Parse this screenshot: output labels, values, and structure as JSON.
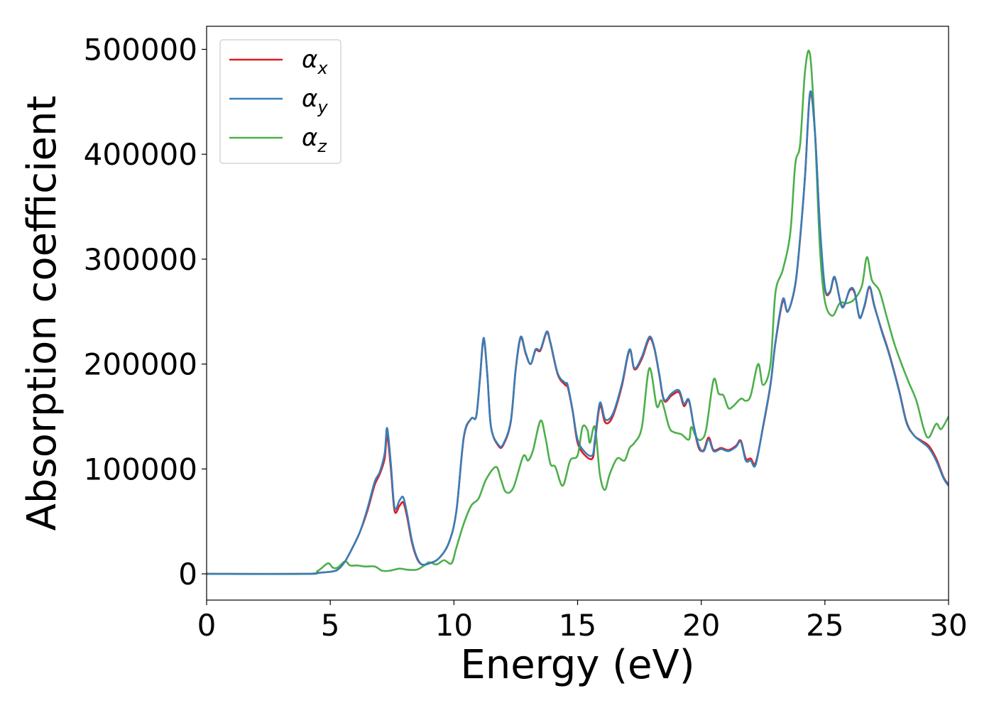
{
  "chart_data": {
    "type": "line",
    "title": "",
    "xlabel": "Energy (eV)",
    "ylabel": "Absorption coefficient",
    "xlim": [
      0,
      30
    ],
    "ylim": [
      -25000,
      522000
    ],
    "xticks": [
      0,
      5,
      10,
      15,
      20,
      25,
      30
    ],
    "xtick_labels": [
      "0",
      "5",
      "10",
      "15",
      "20",
      "25",
      "30"
    ],
    "yticks": [
      0,
      100000,
      200000,
      300000,
      400000,
      500000
    ],
    "ytick_labels": [
      "0",
      "100000",
      "200000",
      "300000",
      "400000",
      "500000"
    ],
    "grid": false,
    "legend_position": "top-left",
    "series": [
      {
        "name": "α_x",
        "legend_base": "α",
        "legend_sub": "x",
        "color": "#e41a1c",
        "x": [
          0,
          4,
          4.5,
          5,
          5.3,
          5.6,
          5.9,
          6.2,
          6.5,
          6.8,
          7.0,
          7.2,
          7.3,
          7.45,
          7.6,
          7.8,
          7.95,
          8.1,
          8.3,
          8.5,
          8.7,
          9.0,
          9.4,
          9.8,
          10.1,
          10.4,
          10.7,
          10.9,
          11.05,
          11.2,
          11.35,
          11.5,
          11.8,
          12.0,
          12.3,
          12.5,
          12.7,
          12.9,
          13.1,
          13.3,
          13.5,
          13.75,
          13.9,
          14.2,
          14.5,
          14.6,
          14.8,
          15.0,
          15.3,
          15.6,
          15.7,
          15.9,
          16.1,
          16.3,
          16.5,
          16.8,
          17.1,
          17.3,
          17.6,
          17.9,
          18.1,
          18.3,
          18.5,
          18.8,
          19.1,
          19.3,
          19.5,
          19.7,
          19.9,
          20.1,
          20.3,
          20.5,
          20.8,
          21.1,
          21.4,
          21.6,
          21.8,
          22.0,
          22.2,
          22.5,
          22.8,
          23.0,
          23.3,
          23.5,
          23.8,
          24.0,
          24.2,
          24.4,
          24.6,
          24.8,
          25.0,
          25.2,
          25.4,
          25.7,
          26.0,
          26.2,
          26.4,
          26.6,
          26.8,
          27.0,
          27.3,
          27.6,
          28.0,
          28.3,
          28.6,
          28.9,
          29.2,
          29.5,
          29.8,
          30.0
        ],
        "y": [
          0,
          0,
          1000,
          2000,
          4000,
          12000,
          25000,
          40000,
          60000,
          85000,
          95000,
          110000,
          132000,
          100000,
          60000,
          65000,
          68000,
          55000,
          30000,
          15000,
          9000,
          10000,
          15000,
          30000,
          60000,
          130000,
          148000,
          150000,
          185000,
          223000,
          190000,
          140000,
          122000,
          123000,
          145000,
          195000,
          225000,
          210000,
          200000,
          213000,
          213000,
          230000,
          220000,
          190000,
          180000,
          178000,
          155000,
          125000,
          113000,
          110000,
          125000,
          160000,
          145000,
          145000,
          155000,
          180000,
          213000,
          195000,
          205000,
          224000,
          215000,
          190000,
          165000,
          170000,
          173000,
          160000,
          165000,
          140000,
          120000,
          118000,
          130000,
          118000,
          120000,
          118000,
          122000,
          127000,
          110000,
          110000,
          106000,
          140000,
          180000,
          220000,
          260000,
          250000,
          275000,
          320000,
          380000,
          457000,
          420000,
          330000,
          272000,
          268000,
          282000,
          255000,
          270000,
          268000,
          245000,
          255000,
          273000,
          255000,
          232000,
          210000,
          175000,
          145000,
          132000,
          127000,
          122000,
          110000,
          92000,
          85000
        ]
      },
      {
        "name": "α_y",
        "legend_base": "α",
        "legend_sub": "y",
        "color": "#377eb8",
        "x": [
          0,
          4,
          4.5,
          5,
          5.3,
          5.6,
          5.9,
          6.2,
          6.5,
          6.8,
          7.0,
          7.2,
          7.3,
          7.45,
          7.6,
          7.8,
          7.95,
          8.1,
          8.3,
          8.5,
          8.7,
          9.0,
          9.4,
          9.8,
          10.1,
          10.4,
          10.7,
          10.9,
          11.05,
          11.2,
          11.35,
          11.5,
          11.8,
          12.0,
          12.3,
          12.5,
          12.7,
          12.9,
          13.1,
          13.3,
          13.5,
          13.75,
          13.9,
          14.2,
          14.5,
          14.6,
          14.8,
          15.0,
          15.3,
          15.6,
          15.7,
          15.9,
          16.1,
          16.3,
          16.5,
          16.8,
          17.1,
          17.3,
          17.6,
          17.9,
          18.1,
          18.3,
          18.5,
          18.8,
          19.1,
          19.3,
          19.5,
          19.7,
          19.9,
          20.1,
          20.3,
          20.5,
          20.8,
          21.1,
          21.4,
          21.6,
          21.8,
          22.0,
          22.2,
          22.5,
          22.8,
          23.0,
          23.3,
          23.5,
          23.8,
          24.0,
          24.2,
          24.4,
          24.6,
          24.8,
          25.0,
          25.2,
          25.4,
          25.7,
          26.0,
          26.2,
          26.4,
          26.6,
          26.8,
          27.0,
          27.3,
          27.6,
          28.0,
          28.3,
          28.6,
          28.9,
          29.2,
          29.5,
          29.8,
          30.0
        ],
        "y": [
          0,
          0,
          1000,
          2000,
          4000,
          12000,
          25000,
          40000,
          62000,
          88000,
          97000,
          115000,
          139000,
          105000,
          63000,
          70000,
          73000,
          58000,
          32000,
          16000,
          9000,
          10000,
          15000,
          30000,
          60000,
          131000,
          148000,
          150000,
          186000,
          225000,
          190000,
          140000,
          123000,
          124000,
          146000,
          196000,
          226000,
          211000,
          200000,
          214000,
          214000,
          231000,
          221000,
          191000,
          182000,
          180000,
          156000,
          128000,
          116000,
          113000,
          128000,
          163000,
          148000,
          148000,
          157000,
          182000,
          214000,
          196000,
          207000,
          226000,
          216000,
          191000,
          166000,
          172000,
          175000,
          162000,
          166000,
          141000,
          122000,
          117000,
          128000,
          117000,
          119000,
          117000,
          121000,
          126000,
          108000,
          108000,
          104000,
          141000,
          181000,
          221000,
          262000,
          250000,
          276000,
          321000,
          381000,
          459000,
          420000,
          331000,
          273000,
          269000,
          283000,
          254000,
          271000,
          269000,
          244000,
          256000,
          274000,
          256000,
          231000,
          209000,
          174000,
          144000,
          132000,
          126000,
          120000,
          108000,
          91000,
          84000
        ]
      },
      {
        "name": "α_z",
        "legend_base": "α",
        "legend_sub": "z",
        "color": "#4daf4a",
        "x": [
          0,
          4,
          4.5,
          4.9,
          5.1,
          5.3,
          5.6,
          5.8,
          6.1,
          6.4,
          6.8,
          7.1,
          7.4,
          7.8,
          8.1,
          8.5,
          8.8,
          9.0,
          9.3,
          9.6,
          9.9,
          10.1,
          10.4,
          10.7,
          11.0,
          11.3,
          11.7,
          11.9,
          12.1,
          12.4,
          12.8,
          13.0,
          13.2,
          13.5,
          13.7,
          13.9,
          14.1,
          14.4,
          14.7,
          15.0,
          15.2,
          15.4,
          15.5,
          15.7,
          15.9,
          16.1,
          16.3,
          16.6,
          16.9,
          17.1,
          17.3,
          17.6,
          17.9,
          18.2,
          18.4,
          18.7,
          18.9,
          19.2,
          19.5,
          19.6,
          19.8,
          20.0,
          20.2,
          20.5,
          20.7,
          20.9,
          21.1,
          21.3,
          21.6,
          21.8,
          22.0,
          22.3,
          22.5,
          22.8,
          23.0,
          23.3,
          23.6,
          23.8,
          24.0,
          24.2,
          24.4,
          24.6,
          24.8,
          25.0,
          25.3,
          25.6,
          25.9,
          26.2,
          26.5,
          26.7,
          26.9,
          27.2,
          27.5,
          27.8,
          28.1,
          28.4,
          28.7,
          29.0,
          29.2,
          29.5,
          29.7,
          30.0
        ],
        "y": [
          0,
          0,
          3000,
          10000,
          6000,
          6000,
          12000,
          8000,
          8000,
          7000,
          7000,
          3000,
          3000,
          5000,
          4000,
          4000,
          8000,
          11000,
          9000,
          13000,
          10000,
          25000,
          48000,
          65000,
          72000,
          90000,
          102000,
          90000,
          78000,
          82000,
          112000,
          108000,
          118000,
          146000,
          130000,
          105000,
          102000,
          84000,
          108000,
          113000,
          140000,
          137000,
          125000,
          140000,
          95000,
          80000,
          95000,
          110000,
          108000,
          120000,
          125000,
          140000,
          196000,
          160000,
          165000,
          140000,
          135000,
          133000,
          128000,
          140000,
          130000,
          128000,
          138000,
          185000,
          172000,
          170000,
          158000,
          160000,
          167000,
          165000,
          170000,
          200000,
          180000,
          200000,
          268000,
          290000,
          325000,
          390000,
          410000,
          480000,
          495000,
          420000,
          310000,
          260000,
          246000,
          258000,
          258000,
          262000,
          275000,
          302000,
          280000,
          270000,
          245000,
          220000,
          200000,
          182000,
          165000,
          138000,
          130000,
          143000,
          138000,
          150000
        ]
      }
    ]
  }
}
